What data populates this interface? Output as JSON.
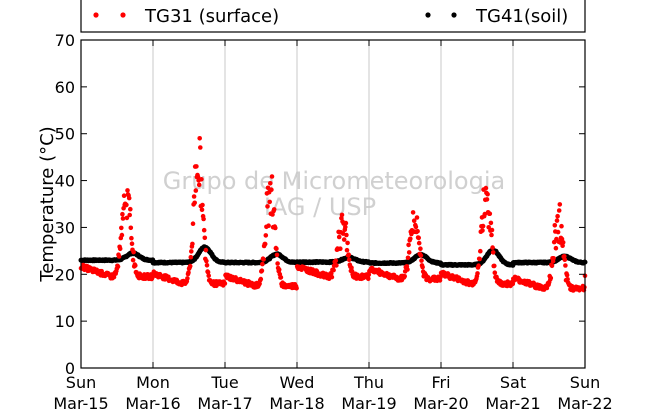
{
  "chart_data": {
    "type": "scatter",
    "title": "",
    "xlabel": "",
    "ylabel": "Temperature (°C)",
    "ylim": [
      0,
      70
    ],
    "yticks": [
      0,
      10,
      20,
      30,
      40,
      50,
      60,
      70
    ],
    "xlim": [
      "2015-03-15 00:00",
      "2015-03-22 00:00"
    ],
    "xticks": [
      {
        "day": "Sun",
        "date": "Mar-15"
      },
      {
        "day": "Mon",
        "date": "Mar-16"
      },
      {
        "day": "Tue",
        "date": "Mar-17"
      },
      {
        "day": "Wed",
        "date": "Mar-18"
      },
      {
        "day": "Thu",
        "date": "Mar-19"
      },
      {
        "day": "Fri",
        "date": "Mar-20"
      },
      {
        "day": "Sat",
        "date": "Mar-21"
      },
      {
        "day": "Sun",
        "date": "Mar-22"
      }
    ],
    "grid": "vertical",
    "legend_position": "top",
    "watermark": [
      "Grupo de Micrometeorologia",
      "IAG / USP"
    ],
    "series": [
      {
        "name": "TG31 (surface)",
        "color": "#ff0000",
        "marker": "dot",
        "note_values": "daily min ~18-20 °C overnight, afternoon peaks",
        "daily": [
          {
            "day": "Mar-15",
            "min": 19.5,
            "peak": 40.0
          },
          {
            "day": "Mar-16",
            "min": 18.0,
            "peak": 49.0
          },
          {
            "day": "Mar-17",
            "min": 17.5,
            "peak": 42.0
          },
          {
            "day": "Mar-18",
            "min": 19.5,
            "peak": 33.5
          },
          {
            "day": "Mar-19",
            "min": 19.0,
            "peak": 35.0
          },
          {
            "day": "Mar-20",
            "min": 18.0,
            "peak": 41.5
          },
          {
            "day": "Mar-21",
            "min": 17.0,
            "peak": 34.0
          }
        ]
      },
      {
        "name": "TG41(soil)",
        "color": "#000000",
        "marker": "dot",
        "daily": [
          {
            "day": "Mar-15",
            "min": 23.0,
            "peak": 24.5
          },
          {
            "day": "Mar-16",
            "min": 22.5,
            "peak": 25.8
          },
          {
            "day": "Mar-17",
            "min": 22.5,
            "peak": 24.3
          },
          {
            "day": "Mar-18",
            "min": 22.6,
            "peak": 23.6
          },
          {
            "day": "Mar-19",
            "min": 22.4,
            "peak": 24.2
          },
          {
            "day": "Mar-20",
            "min": 22.0,
            "peak": 25.2
          },
          {
            "day": "Mar-21",
            "min": 22.5,
            "peak": 23.8
          }
        ]
      }
    ]
  }
}
